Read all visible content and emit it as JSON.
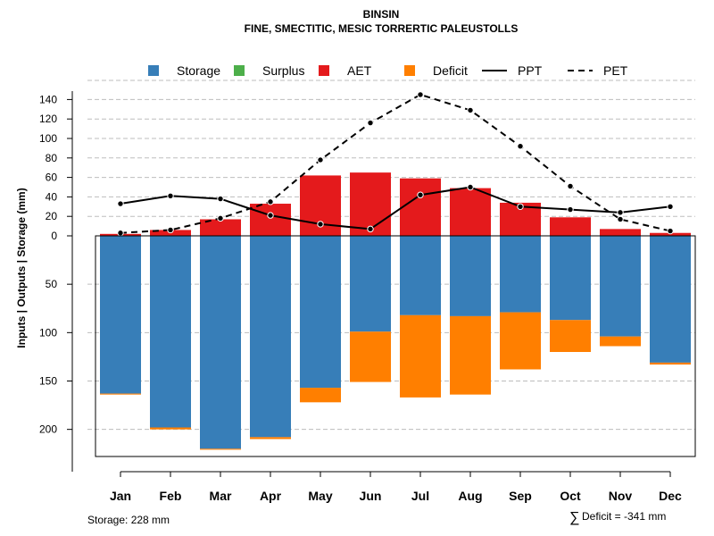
{
  "chart_data": {
    "type": "bar",
    "title": "BINSIN",
    "subtitle": "FINE, SMECTITIC, MESIC TORRERTIC PALEUSTOLLS",
    "ylabel": "Inputs | Outputs | Storage    (mm)",
    "categories": [
      "Jan",
      "Feb",
      "Mar",
      "Apr",
      "May",
      "Jun",
      "Jul",
      "Aug",
      "Sep",
      "Oct",
      "Nov",
      "Dec"
    ],
    "upper_axis": {
      "ticks": [
        0,
        20,
        40,
        60,
        80,
        100,
        120,
        140
      ],
      "range": [
        0,
        150
      ]
    },
    "lower_axis": {
      "ticks": [
        50,
        100,
        150,
        200
      ],
      "range": [
        0,
        228
      ]
    },
    "series": [
      {
        "name": "Storage",
        "color": "#377EB8",
        "values": [
          163,
          198,
          220,
          208,
          157,
          99,
          82,
          83,
          79,
          87,
          104,
          131
        ]
      },
      {
        "name": "Surplus",
        "color": "#4DAF4A",
        "values": [
          0,
          0,
          0,
          0,
          0,
          0,
          0,
          0,
          0,
          0,
          0,
          0
        ]
      },
      {
        "name": "AET",
        "color": "#E41A1C",
        "values": [
          2,
          6,
          17,
          33,
          62,
          65,
          59,
          49,
          34,
          19,
          7,
          3
        ]
      },
      {
        "name": "Deficit",
        "color": "#FF7F00",
        "values": [
          1,
          2,
          1,
          2,
          15,
          52,
          85,
          81,
          59,
          33,
          10,
          2
        ]
      },
      {
        "name": "PPT",
        "style": "solid",
        "values": [
          33,
          41,
          38,
          21,
          12,
          7,
          42,
          50,
          30,
          27,
          24,
          30
        ]
      },
      {
        "name": "PET",
        "style": "dashed",
        "values": [
          3,
          6,
          18,
          35,
          78,
          116,
          145,
          129,
          92,
          51,
          17,
          5
        ]
      }
    ],
    "legend": [
      "Storage",
      "Surplus",
      "AET",
      "Deficit",
      "PPT",
      "PET"
    ],
    "legend_position": "top",
    "grid": true
  },
  "footer": {
    "storage_text": "Storage: 228 mm",
    "deficit_symbol": "∑",
    "deficit_text": "Deficit = -341 mm"
  }
}
